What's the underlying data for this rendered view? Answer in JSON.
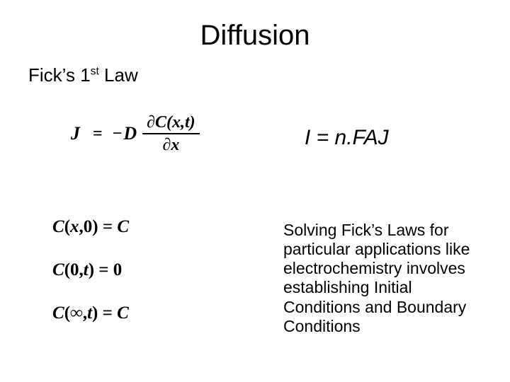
{
  "title": "Diffusion",
  "subtitle_html": "Fick’s 1<sup>st</sup> Law",
  "ficks_equation": {
    "lhs": "J",
    "equals": "=",
    "minus": "−",
    "D": "D",
    "num": "∂C(x,t)",
    "den": "∂x"
  },
  "i_equation": "I = n.FAJ",
  "conditions": [
    "C(x,0) = C",
    "C(0,t) = 0",
    "C(∞,t) = C"
  ],
  "paragraph": "Solving Fick’s Laws for particular applications like electrochemistry involves establishing Initial Conditions and Boundary Conditions",
  "colors": {
    "text": "#000000",
    "bg": "#ffffff"
  },
  "fonts": {
    "body": "Arial",
    "math": "Times New Roman"
  }
}
